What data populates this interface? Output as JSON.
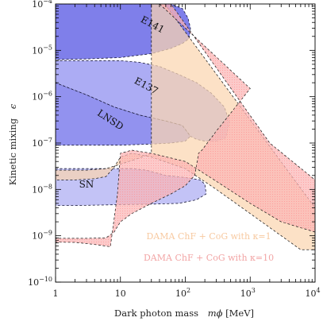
{
  "chart_data": {
    "type": "area",
    "title": "",
    "xlabel": "Dark photon mass",
    "xlabel_symbol": "mϕ",
    "xlabel_unit": "[MeV]",
    "ylabel": "Kinetic mixing",
    "ylabel_symbol": "ϵ",
    "x_scale": "log",
    "y_scale": "log",
    "xlim": [
      1,
      10000
    ],
    "ylim": [
      1e-10,
      0.0001
    ],
    "x_ticks": [
      {
        "value": 1,
        "base": "1",
        "exp": ""
      },
      {
        "value": 10,
        "base": "10",
        "exp": ""
      },
      {
        "value": 100,
        "base": "10",
        "exp": "2"
      },
      {
        "value": 1000,
        "base": "10",
        "exp": "3"
      },
      {
        "value": 10000,
        "base": "10",
        "exp": "4"
      }
    ],
    "y_ticks": [
      {
        "value": 1e-10,
        "base": "10",
        "exp": "−10"
      },
      {
        "value": 1e-09,
        "base": "10",
        "exp": "−9"
      },
      {
        "value": 1e-08,
        "base": "10",
        "exp": "−8"
      },
      {
        "value": 1e-07,
        "base": "10",
        "exp": "−7"
      },
      {
        "value": 1e-06,
        "base": "10",
        "exp": "−6"
      },
      {
        "value": 1e-05,
        "base": "10",
        "exp": "−5"
      },
      {
        "value": 0.0001,
        "base": "10",
        "exp": "−4"
      }
    ],
    "grid": false,
    "legend_position": "bottom-right",
    "excluded_regions": [
      {
        "name": "SN",
        "color": "#b8b8f4",
        "label_at": [
          2.3,
          1.1e-08
        ],
        "boundary": [
          [
            1,
            2.8e-08
          ],
          [
            2,
            2.8e-08
          ],
          [
            5,
            2.8e-08
          ],
          [
            15,
            2.8e-08
          ],
          [
            25,
            2.6e-08
          ],
          [
            50,
            2e-08
          ],
          [
            100,
            1.8e-08
          ],
          [
            170,
            1.6e-08
          ],
          [
            200,
            1.3e-08
          ],
          [
            210,
            8e-09
          ],
          [
            150,
            6e-09
          ],
          [
            80,
            5e-09
          ],
          [
            30,
            4.8e-09
          ],
          [
            10,
            4.7e-09
          ],
          [
            5,
            4.6e-09
          ],
          [
            2,
            4.5e-09
          ],
          [
            1,
            4.5e-09
          ]
        ]
      },
      {
        "name": "LNSD",
        "color": "#7f7fec",
        "label_at": [
          4.3,
          4.1e-07
        ],
        "boundary": [
          [
            1,
            2e-06
          ],
          [
            3,
            1.1e-06
          ],
          [
            8,
            6e-07
          ],
          [
            20,
            4e-07
          ],
          [
            50,
            3e-07
          ],
          [
            90,
            2.4e-07
          ],
          [
            120,
            1.4e-07
          ],
          [
            100,
            1.1e-07
          ],
          [
            60,
            1e-07
          ],
          [
            30,
            9.5e-08
          ],
          [
            10,
            9e-08
          ],
          [
            3,
            9e-08
          ],
          [
            1,
            9e-08
          ]
        ]
      },
      {
        "name": "E137",
        "color": "#9d9df2",
        "label_at": [
          16,
          2e-06
        ],
        "boundary": [
          [
            1,
            6e-06
          ],
          [
            3,
            6e-06
          ],
          [
            10,
            6e-06
          ],
          [
            20,
            5.5e-06
          ],
          [
            40,
            4.5e-06
          ],
          [
            80,
            3e-06
          ],
          [
            150,
            2e-06
          ],
          [
            250,
            1.2e-06
          ],
          [
            400,
            6e-07
          ],
          [
            480,
            2.8e-07
          ],
          [
            420,
            1.3e-07
          ],
          [
            300,
            1.1e-07
          ],
          [
            200,
            1.1e-07
          ],
          [
            150,
            1.2e-07
          ],
          [
            120,
            1.4e-07
          ],
          [
            90,
            2.4e-07
          ],
          [
            50,
            3e-07
          ],
          [
            20,
            4e-07
          ],
          [
            8,
            6e-07
          ],
          [
            3,
            1.1e-06
          ],
          [
            1,
            2e-06
          ]
        ]
      },
      {
        "name": "E141",
        "color": "#6868e6",
        "label_at": [
          20,
          4.2e-05
        ],
        "boundary": [
          [
            1,
            0.0001
          ],
          [
            2,
            0.0001
          ],
          [
            10,
            0.0001
          ],
          [
            30,
            0.0001
          ],
          [
            60,
            0.0001
          ],
          [
            90,
            8e-05
          ],
          [
            110,
            5e-05
          ],
          [
            120,
            3e-05
          ],
          [
            115,
            1.8e-05
          ],
          [
            90,
            1.4e-05
          ],
          [
            60,
            1.1e-05
          ],
          [
            30,
            8.5e-06
          ],
          [
            10,
            7e-06
          ],
          [
            3,
            6.5e-06
          ],
          [
            1,
            6.3e-06
          ]
        ]
      }
    ],
    "series": [
      {
        "name": "DAMA ChF + CoG with κ=1",
        "color": "#fbd6b0",
        "label_color": "#f7c9a0",
        "boundary": [
          [
            30,
            0.0001
          ],
          [
            48,
            0.0001
          ],
          [
            10000,
            4e-09
          ],
          [
            10000,
            5e-10
          ],
          [
            6000,
            5e-10
          ],
          [
            1000,
            3e-09
          ],
          [
            300,
            1e-08
          ],
          [
            100,
            2.8e-08
          ],
          [
            30,
            5e-08
          ],
          [
            15,
            6e-08
          ],
          [
            10,
            5e-08
          ],
          [
            8,
            3e-08
          ],
          [
            6,
            1.9e-08
          ],
          [
            4,
            1.7e-08
          ],
          [
            2,
            1.6e-08
          ],
          [
            1,
            1.6e-08
          ],
          [
            1,
            2.6e-08
          ],
          [
            3,
            2.6e-08
          ],
          [
            6,
            2.8e-08
          ],
          [
            10,
            3.5e-08
          ],
          [
            20,
            4.8e-08
          ],
          [
            30,
            6e-08
          ]
        ]
      },
      {
        "name": "DAMA ChF + CoG with κ=10",
        "color": "#fbb6b6",
        "label_color": "#f2a5a5",
        "boundary": [
          [
            40,
            0.0001
          ],
          [
            60,
            0.0001
          ],
          [
            2000,
            1e-07
          ],
          [
            10000,
            1.6e-08
          ],
          [
            10000,
            1.2e-09
          ],
          [
            3000,
            2e-09
          ],
          [
            1000,
            5e-09
          ],
          [
            300,
            1.5e-08
          ],
          [
            100,
            4e-08
          ],
          [
            30,
            6e-08
          ],
          [
            15,
            7e-08
          ],
          [
            10,
            6e-08
          ],
          [
            9,
            8e-09
          ],
          [
            7,
            5.8e-10
          ],
          [
            4,
            6.5e-10
          ],
          [
            2,
            7.2e-10
          ],
          [
            1,
            7.3e-10
          ],
          [
            1,
            8.8e-10
          ],
          [
            3,
            8.8e-10
          ],
          [
            6,
            9e-10
          ],
          [
            8,
            1.2e-09
          ],
          [
            10,
            2e-09
          ],
          [
            15,
            3e-09
          ],
          [
            30,
            5e-09
          ],
          [
            60,
            8e-09
          ],
          [
            100,
            1.2e-08
          ],
          [
            140,
            2e-08
          ],
          [
            160,
            6e-08
          ],
          [
            180,
            7e-08
          ],
          [
            300,
            1.8e-07
          ],
          [
            1000,
            1.5e-06
          ]
        ]
      }
    ],
    "legend": [
      {
        "label": "DAMA ChF + CoG with κ=1",
        "color": "#f7c9a0",
        "at": [
          230,
          8.5e-10
        ]
      },
      {
        "label": "DAMA ChF + CoG with κ=10",
        "color": "#f2a5a5",
        "at": [
          230,
          2.9e-10
        ]
      }
    ]
  }
}
